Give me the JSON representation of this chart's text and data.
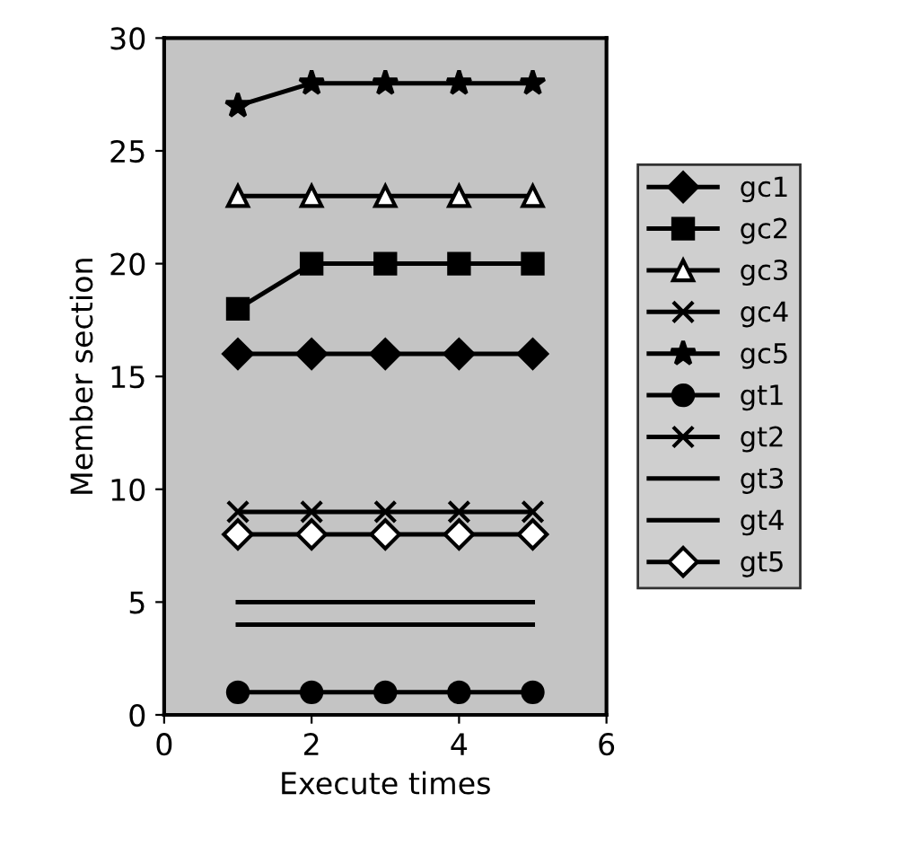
{
  "chart_data": {
    "type": "line",
    "xlabel": "Execute times",
    "ylabel": "Member section",
    "x": [
      1,
      2,
      3,
      4,
      5
    ],
    "xlim": [
      0,
      6
    ],
    "xticks": [
      0,
      2,
      4,
      6
    ],
    "ylim": [
      0,
      30
    ],
    "yticks": [
      0,
      5,
      10,
      15,
      20,
      25,
      30
    ],
    "grid": false,
    "legend": "right",
    "series": [
      {
        "name": "gc1",
        "color": "#000000",
        "marker": "diamond",
        "values": [
          16,
          16,
          16,
          16,
          16
        ]
      },
      {
        "name": "gc2",
        "color": "#000000",
        "marker": "square",
        "values": [
          18,
          20,
          20,
          20,
          20
        ]
      },
      {
        "name": "gc3",
        "color": "#000000",
        "marker": "triangle",
        "values": [
          23,
          23,
          23,
          23,
          23
        ]
      },
      {
        "name": "gc4",
        "color": "#000000",
        "marker": "cross",
        "values": [
          9,
          9,
          9,
          9,
          9
        ]
      },
      {
        "name": "gc5",
        "color": "#000000",
        "marker": "star",
        "values": [
          27,
          28,
          28,
          28,
          28
        ]
      },
      {
        "name": "gt1",
        "color": "#000000",
        "marker": "circle",
        "values": [
          1,
          1,
          1,
          1,
          1
        ]
      },
      {
        "name": "gt2",
        "color": "#000000",
        "marker": "cross",
        "values": [
          null,
          null,
          null,
          null,
          null
        ]
      },
      {
        "name": "gt3",
        "color": "#000000",
        "marker": "none",
        "values": [
          5,
          5,
          5,
          5,
          5
        ]
      },
      {
        "name": "gt4",
        "color": "#000000",
        "marker": "none",
        "values": [
          4,
          4,
          4,
          4,
          4
        ]
      },
      {
        "name": "gt5",
        "color": "#000000",
        "marker": "diamond",
        "values": [
          8,
          8,
          8,
          8,
          8
        ]
      }
    ]
  }
}
